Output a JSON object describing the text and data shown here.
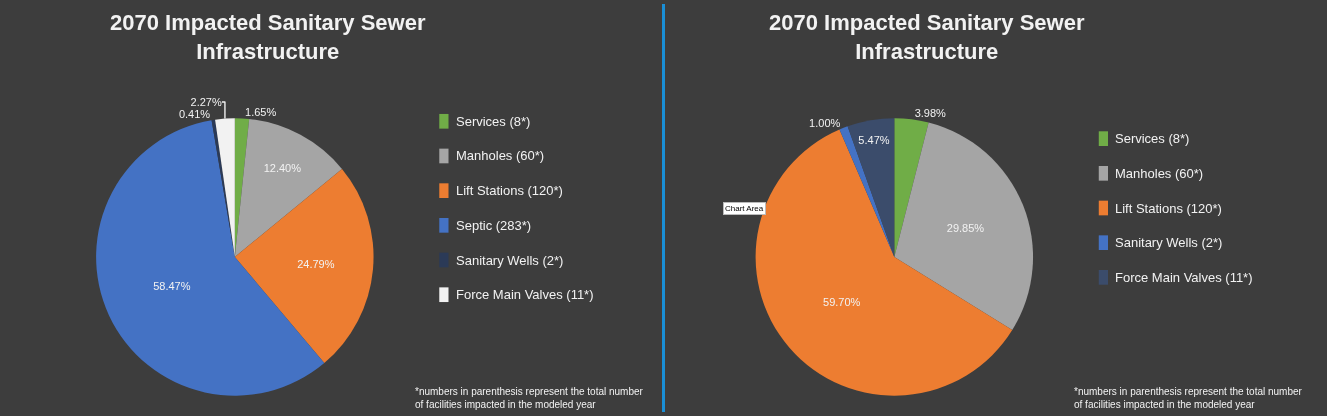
{
  "chart_data": [
    {
      "type": "pie",
      "title": "2070 Impacted Sanitary Sewer Infrastructure",
      "categories": [
        "Services (8*)",
        "Manholes (60*)",
        "Lift Stations (120*)",
        "Septic (283*)",
        "Sanitary Wells (2*)",
        "Force Main Valves (11*)"
      ],
      "values": [
        1.65,
        12.4,
        24.79,
        58.47,
        0.41,
        2.27
      ],
      "value_labels": [
        "1.65%",
        "12.40%",
        "24.79%",
        "58.47%",
        "0.41%",
        "2.27%"
      ],
      "colors": [
        "#70ad47",
        "#a5a5a5",
        "#ed7d31",
        "#4472c4",
        "#2b3a57",
        "#f2f2f2"
      ],
      "legend": "right",
      "annotations": [
        "*numbers in parenthesis represent the total number of facilities impacted in the modeled year"
      ]
    },
    {
      "type": "pie",
      "title": "2070 Impacted Sanitary Sewer Infrastructure",
      "categories": [
        "Services (8*)",
        "Manholes (60*)",
        "Lift Stations (120*)",
        "Sanitary Wells (2*)",
        "Force Main Valves (11*)"
      ],
      "values": [
        3.98,
        29.85,
        59.7,
        1.0,
        5.47
      ],
      "value_labels": [
        "3.98%",
        "29.85%",
        "59.70%",
        "1.00%",
        "5.47%"
      ],
      "colors": [
        "#70ad47",
        "#a5a5a5",
        "#ed7d31",
        "#4472c4",
        "#3b4c6b"
      ],
      "legend": "right",
      "annotations": [
        "*numbers in parenthesis represent the total number of facilities impacted in the modeled year",
        "Chart Area"
      ]
    }
  ]
}
